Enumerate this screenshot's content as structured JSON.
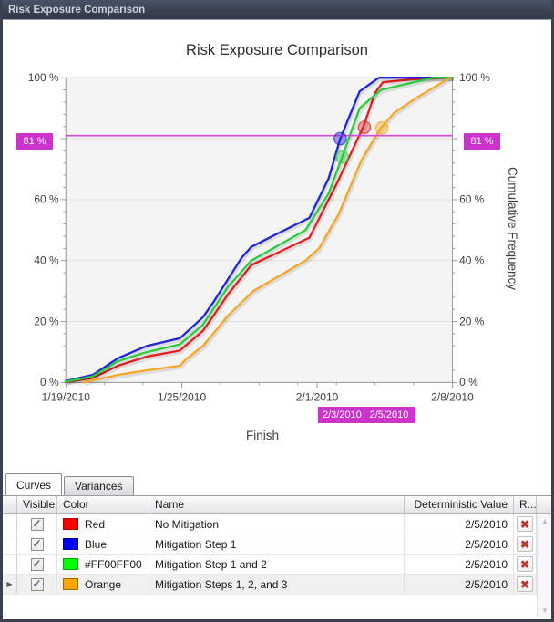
{
  "window": {
    "title": "Risk Exposure Comparison"
  },
  "icons": {
    "row_selector": "▶",
    "scroll_up": "▲",
    "scroll_down": "▼",
    "delete": "✖",
    "checkbox_check": "✓"
  },
  "chart": {
    "title": "Risk Exposure Comparison",
    "x_axis_label": "Finish",
    "y_axis_right_label": "Cumulative Frequency",
    "y_ticks": [
      {
        "value": 0,
        "label": "0 %"
      },
      {
        "value": 20,
        "label": "20 %"
      },
      {
        "value": 40,
        "label": "40 %"
      },
      {
        "value": 60,
        "label": "60 %"
      },
      {
        "value": 100,
        "label": "100 %"
      }
    ],
    "x_ticks": [
      {
        "day": 0,
        "label": "1/19/2010"
      },
      {
        "day": 6,
        "label": "1/25/2010"
      },
      {
        "day": 13,
        "label": "2/1/2010"
      },
      {
        "day": 20,
        "label": "2/8/2010"
      }
    ],
    "annotation": {
      "percent": 81,
      "percent_label": "81 %",
      "color": "#CC33CC",
      "date_label_left": "2/3/2010",
      "date_label_right": "2/5/2010"
    }
  },
  "chart_data": {
    "type": "line",
    "title": "Risk Exposure Comparison",
    "xlabel": "Finish",
    "ylabel": "Cumulative Frequency",
    "x_unit": "days after 1/19/2010",
    "xlim": [
      0,
      20
    ],
    "ylim": [
      0,
      100
    ],
    "x_tick_labels": [
      "1/19/2010",
      "1/25/2010",
      "2/1/2010",
      "2/8/2010"
    ],
    "grid": "horizontal",
    "legend_position": "none",
    "reference_line_percent": 81,
    "series": [
      {
        "name": "No Mitigation",
        "color_name": "Red",
        "line_color": "#E02020",
        "points": [
          [
            0,
            0.2
          ],
          [
            1.4,
            1.5
          ],
          [
            2.7,
            5.5
          ],
          [
            4.2,
            8.5
          ],
          [
            5.9,
            10.5
          ],
          [
            7.1,
            17
          ],
          [
            8.4,
            29
          ],
          [
            9.6,
            38.5
          ],
          [
            12.6,
            47.5
          ],
          [
            14,
            65
          ],
          [
            15.4,
            84
          ],
          [
            16,
            95
          ],
          [
            16.4,
            98.5
          ],
          [
            18,
            99.5
          ],
          [
            20,
            100
          ]
        ],
        "marker": [
          15.45,
          83.7
        ]
      },
      {
        "name": "Mitigation Step 1",
        "color_name": "Blue",
        "line_color": "#2025D5",
        "points": [
          [
            0,
            0.5
          ],
          [
            1.4,
            2.5
          ],
          [
            2.7,
            8
          ],
          [
            4.2,
            12
          ],
          [
            5.9,
            14.5
          ],
          [
            7.1,
            21.5
          ],
          [
            7.7,
            27
          ],
          [
            8.4,
            34
          ],
          [
            9.1,
            41
          ],
          [
            9.6,
            44.5
          ],
          [
            11,
            49
          ],
          [
            12.6,
            54
          ],
          [
            13.6,
            67
          ],
          [
            14.2,
            80
          ],
          [
            15.2,
            95.5
          ],
          [
            16.2,
            100
          ],
          [
            20,
            100
          ]
        ],
        "marker": [
          14.2,
          80
        ]
      },
      {
        "name": "Mitigation Step 1 and 2",
        "color_name": "#FF00FF00",
        "line_color": "#28CC3C",
        "points": [
          [
            0,
            0.3
          ],
          [
            1.4,
            2
          ],
          [
            2.7,
            7
          ],
          [
            4.2,
            10
          ],
          [
            5.9,
            12.5
          ],
          [
            7.1,
            19
          ],
          [
            8.4,
            31.5
          ],
          [
            9.6,
            40
          ],
          [
            12.4,
            50
          ],
          [
            13.6,
            62
          ],
          [
            14.3,
            74
          ],
          [
            15.2,
            90
          ],
          [
            16.3,
            96
          ],
          [
            19,
            100
          ],
          [
            20,
            100
          ]
        ],
        "marker": [
          14.3,
          74
        ]
      },
      {
        "name": "Mitigation Steps 1, 2, and 3",
        "color_name": "Orange",
        "line_color": "#F5A623",
        "points": [
          [
            0.9,
            0
          ],
          [
            2.7,
            2.5
          ],
          [
            4.2,
            4
          ],
          [
            5.9,
            5.5
          ],
          [
            6.2,
            7.5
          ],
          [
            7.1,
            12
          ],
          [
            8.4,
            22
          ],
          [
            9.7,
            30
          ],
          [
            12.4,
            40
          ],
          [
            13.1,
            44
          ],
          [
            14.1,
            55
          ],
          [
            15.3,
            73
          ],
          [
            16.3,
            83.5
          ],
          [
            17,
            88.5
          ],
          [
            18.3,
            94
          ],
          [
            19.9,
            100
          ]
        ],
        "marker": [
          16.35,
          83.5
        ]
      }
    ]
  },
  "tabs": [
    {
      "label": "Curves",
      "active": true
    },
    {
      "label": "Variances",
      "active": false
    }
  ],
  "table": {
    "columns": [
      "Visible",
      "Color",
      "Name",
      "Deterministic Value",
      "R..."
    ],
    "rows": [
      {
        "visible": true,
        "swatch": "#FF0000",
        "color_name": "Red",
        "name": "No Mitigation",
        "deterministic_value": "2/5/2010",
        "selected": false
      },
      {
        "visible": true,
        "swatch": "#0000FF",
        "color_name": "Blue",
        "name": "Mitigation Step 1",
        "deterministic_value": "2/5/2010",
        "selected": false
      },
      {
        "visible": true,
        "swatch": "#00FF00",
        "color_name": "#FF00FF00",
        "name": "Mitigation Step 1 and 2",
        "deterministic_value": "2/5/2010",
        "selected": false
      },
      {
        "visible": true,
        "swatch": "#FFA500",
        "color_name": "Orange",
        "name": "Mitigation Steps 1, 2, and 3",
        "deterministic_value": "2/5/2010",
        "selected": true
      }
    ]
  }
}
